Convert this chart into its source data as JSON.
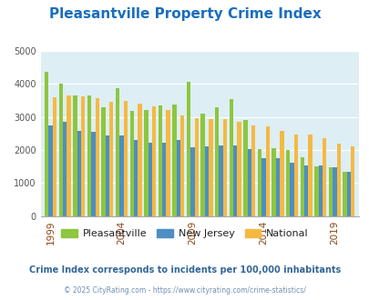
{
  "title": "Pleasantville Property Crime Index",
  "title_color": "#1a6ebd",
  "title_fontsize": 11,
  "fig_bg_color": "#ffffff",
  "plot_bg_color": "#ddeef5",
  "years": [
    1999,
    2000,
    2001,
    2002,
    2003,
    2004,
    2005,
    2006,
    2007,
    2008,
    2009,
    2010,
    2011,
    2012,
    2013,
    2014,
    2015,
    2016,
    2017,
    2018,
    2019,
    2020
  ],
  "pleasantville": [
    4380,
    4020,
    3640,
    3640,
    3290,
    3870,
    3190,
    3200,
    3350,
    3370,
    4070,
    3090,
    3300,
    3530,
    2920,
    2030,
    2060,
    1990,
    1790,
    1510,
    1490,
    1340
  ],
  "new_jersey": [
    2750,
    2850,
    2590,
    2540,
    2440,
    2440,
    2290,
    2220,
    2230,
    2300,
    2080,
    2100,
    2140,
    2150,
    2030,
    1760,
    1740,
    1620,
    1540,
    1540,
    1490,
    1330
  ],
  "national": [
    3600,
    3650,
    3620,
    3570,
    3450,
    3490,
    3400,
    3330,
    3220,
    3040,
    2970,
    2940,
    2940,
    2860,
    2740,
    2730,
    2590,
    2480,
    2460,
    2370,
    2200,
    2110
  ],
  "pleasantville_color": "#8dc63f",
  "new_jersey_color": "#4d8ec4",
  "national_color": "#f5b942",
  "ylim": [
    0,
    5000
  ],
  "yticks": [
    0,
    1000,
    2000,
    3000,
    4000,
    5000
  ],
  "xtick_years": [
    1999,
    2004,
    2009,
    2014,
    2019
  ],
  "footer_text": "© 2025 CityRating.com - https://www.cityrating.com/crime-statistics/",
  "footer_color": "#7090b0",
  "subtitle_text": "Crime Index corresponds to incidents per 100,000 inhabitants",
  "subtitle_color": "#336699",
  "legend_labels": [
    "Pleasantville",
    "New Jersey",
    "National"
  ]
}
